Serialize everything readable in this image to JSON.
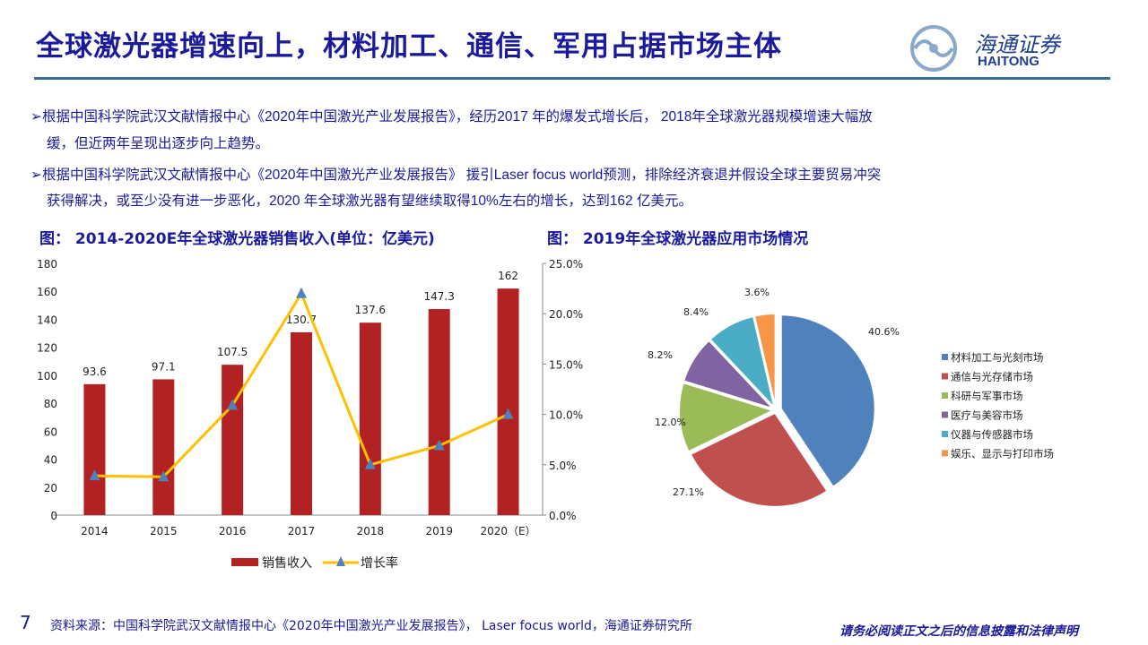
{
  "title": "全球激光器增速向上，材料加工、通信、军用占据市场主体",
  "logo": {
    "cn": "海通证券",
    "en": "HAITONG"
  },
  "bullets": [
    {
      "line1": "根据中国科学院武汉文献情报中心《2020年中国激光产业发展报告》，经历2017 年的爆发式增长后， 2018年全球激光器规模增速大幅放",
      "line2": "缓，但近两年呈现出逐步向上趋势。"
    },
    {
      "line1": "根据中国科学院武汉文献情报中心《2020年中国激光产业发展报告》 援引Laser focus world预测，排除经济衰退并假设全球主要贸易冲突",
      "line2": "获得解决，或至少没有进一步恶化，2020 年全球激光器有望继续取得10%左右的增长，达到162 亿美元。"
    }
  ],
  "bullet_marker": "➢",
  "footer": {
    "page": "7",
    "source": "资料来源：中国科学院武汉文献情报中心《2020年中国激光产业发展报告》， Laser focus world，海通证券研究所",
    "disclaimer": "请务必阅读正文之后的信息披露和法律声明"
  },
  "chart_data": [
    {
      "type": "bar+line",
      "title": "图： 2014-2020E年全球激光器销售收入(单位：亿美元)",
      "categories": [
        "2014",
        "2015",
        "2016",
        "2017",
        "2018",
        "2019",
        "2020（E）"
      ],
      "series": [
        {
          "name": "销售收入",
          "type": "bar",
          "axis": "left",
          "color": "#b22222",
          "values": [
            93.6,
            97.1,
            107.5,
            130.7,
            137.6,
            147.3,
            162
          ],
          "labels": [
            "93.6",
            "97.1",
            "107.5",
            "130.7",
            "137.6",
            "147.3",
            "162"
          ]
        },
        {
          "name": "增长率",
          "type": "line",
          "axis": "right",
          "color": "#ffc000",
          "marker_color": "#4f81bd",
          "values": [
            3.9,
            3.8,
            10.9,
            22.0,
            5.0,
            6.9,
            10.0
          ]
        }
      ],
      "ylim": [
        0,
        180
      ],
      "yticks": [
        "0",
        "20",
        "40",
        "60",
        "80",
        "100",
        "120",
        "140",
        "160",
        "180"
      ],
      "y2lim": [
        0,
        25
      ],
      "y2ticks": [
        "0.0%",
        "5.0%",
        "10.0%",
        "15.0%",
        "20.0%",
        "25.0%"
      ],
      "legend": "bottom"
    },
    {
      "type": "pie",
      "title": "图： 2019年全球激光器应用市场情况",
      "slices": [
        {
          "label": "材料加工与光刻市场",
          "value": 40.6,
          "text": "40.6%",
          "color": "#4f81bd"
        },
        {
          "label": "通信与光存储市场",
          "value": 27.1,
          "text": "27.1%",
          "color": "#c0504d"
        },
        {
          "label": "科研与军事市场",
          "value": 12.0,
          "text": "12.0%",
          "color": "#9bbb59"
        },
        {
          "label": "医疗与美容市场",
          "value": 8.2,
          "text": "8.2%",
          "color": "#8064a2"
        },
        {
          "label": "仪器与传感器市场",
          "value": 8.4,
          "text": "8.4%",
          "color": "#4bacc6"
        },
        {
          "label": "娱乐、显示与打印市场",
          "value": 3.6,
          "text": "3.6%",
          "color": "#f79646"
        }
      ],
      "legend": "right"
    }
  ]
}
